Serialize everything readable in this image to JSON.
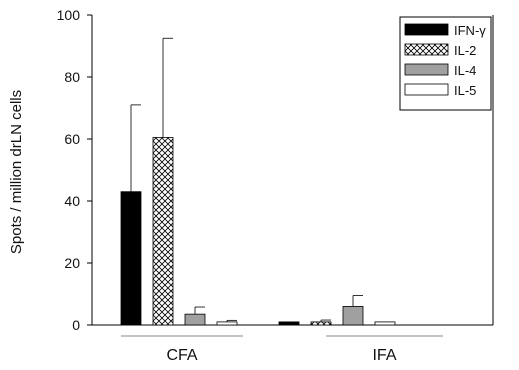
{
  "chart_data": {
    "type": "bar",
    "ylabel": "Spots / million drLN cells",
    "ylim": [
      0,
      100
    ],
    "yticks": [
      0,
      20,
      40,
      60,
      80,
      100
    ],
    "categories": [
      "CFA",
      "IFA"
    ],
    "series": [
      {
        "name": "IFN-γ",
        "values": [
          43,
          1
        ],
        "errors": [
          28,
          0
        ],
        "color": "#000000",
        "pattern": "solid"
      },
      {
        "name": "IL-2",
        "values": [
          60.5,
          1
        ],
        "errors": [
          32,
          0.6
        ],
        "color": "#ffffff",
        "pattern": "crosshatch"
      },
      {
        "name": "IL-4",
        "values": [
          3.5,
          6
        ],
        "errors": [
          2.3,
          3.5
        ],
        "color": "#a0a0a0",
        "pattern": "solid"
      },
      {
        "name": "IL-5",
        "values": [
          1,
          1
        ],
        "errors": [
          0.5,
          0
        ],
        "color": "#ffffff",
        "pattern": "solid"
      }
    ],
    "legend": "top-right",
    "grid": false
  }
}
